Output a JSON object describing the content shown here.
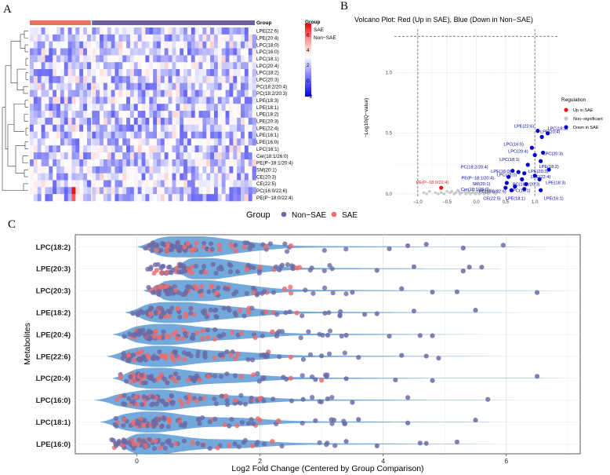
{
  "chart_data": [
    {
      "panel": "A",
      "type": "heatmap",
      "annotation_title": "Group",
      "groups": [
        "SAE",
        "Non−SAE"
      ],
      "group_colors": [
        "#ef6f5f",
        "#6f5ea0"
      ],
      "sae_samples": 16,
      "nonsae_samples": 43,
      "rows": [
        "LPE(22:6)",
        "LPE(20:4)",
        "LPC(18:0)",
        "LPC(16:0)",
        "LPC(18:1)",
        "LPC(20:4)",
        "LPC(18:2)",
        "LPC(20:3)",
        "PC(18:2/20:4)",
        "PC(18:2/20:3)",
        "LPE(18:3)",
        "LPE(18:1)",
        "LPE(18:2)",
        "LPE(20:3)",
        "LPE(22:4)",
        "LPE(16:1)",
        "LPE(16:0)",
        "LPC(16:1)",
        "Cer(18:1/26:0)",
        "PE(P−18:1/20:4)",
        "SM(20:1)",
        "CE(20:3)",
        "CE(22:5)",
        "PC(16:0/22:6)",
        "PE(P−18:0/22:4)"
      ],
      "legend_title": "Group",
      "scale_ticks": [
        "6",
        "4",
        "2",
        "0",
        "−2"
      ],
      "scale_range": [
        -2,
        7
      ],
      "colors": {
        "low": "#0000ee",
        "mid": "#ffffff",
        "high": "#ee0000"
      }
    },
    {
      "panel": "B",
      "type": "scatter",
      "title": "Volcano Plot: Red (Up in SAE), Blue (Down in Non−SAE)",
      "xlabel": "",
      "ylabel": "−Log10(Q−value)",
      "xlim": [
        -1.4,
        1.4
      ],
      "ylim": [
        -0.02,
        1.36
      ],
      "x_ticks": [
        "−1.0",
        "−0.5",
        "0.0",
        "0.5",
        "1.0"
      ],
      "y_ticks": [
        "0.0",
        "0.5",
        "1.0"
      ],
      "threshold_y": 1.3,
      "threshold_x": [
        -1,
        1
      ],
      "legend_title": "Regulation",
      "legend_items": [
        "Up in SAE",
        "Non−significant",
        "Down in SAE"
      ],
      "legend_colors": [
        "#e41a1c",
        "#c8c8c8",
        "#0000cc"
      ],
      "up_points": [
        {
          "label": "PE(P−18:0/22:4)",
          "x": -0.6,
          "y": 0.05
        }
      ],
      "down_points": [
        {
          "label": "LPE(22:6)",
          "x": 1.05,
          "y": 0.52
        },
        {
          "label": "LPC(18:2)",
          "x": 1.22,
          "y": 0.5
        },
        {
          "label": "LPE(20:4)",
          "x": 1.12,
          "y": 0.47
        },
        {
          "label": "LPC(16:0)",
          "x": 0.95,
          "y": 0.38
        },
        {
          "label": "LPC(20:4)",
          "x": 1.0,
          "y": 0.32
        },
        {
          "label": "LPC(20:3)",
          "x": 1.14,
          "y": 0.34
        },
        {
          "label": "LPE(18:2)",
          "x": 1.1,
          "y": 0.27
        },
        {
          "label": "LPE(20:3)",
          "x": 1.24,
          "y": 0.2
        },
        {
          "label": "LPC(18:1)",
          "x": 0.88,
          "y": 0.24
        },
        {
          "label": "PC(18:2/20:4)",
          "x": 0.62,
          "y": 0.19
        },
        {
          "label": "LPE(16:0)",
          "x": 0.72,
          "y": 0.18
        },
        {
          "label": "LPC(18:0)",
          "x": 0.82,
          "y": 0.17
        },
        {
          "label": "PE(P−18:1/20:4)",
          "x": 0.55,
          "y": 0.14
        },
        {
          "label": "PC(18:2/20:3)",
          "x": 0.78,
          "y": 0.12
        },
        {
          "label": "LPE(22:4)",
          "x": 1.0,
          "y": 0.15
        },
        {
          "label": "SM(20:1)",
          "x": 0.52,
          "y": 0.09
        },
        {
          "label": "LPE(18:3)",
          "x": 1.08,
          "y": 0.12
        },
        {
          "label": "LPC(16:1)",
          "x": 0.85,
          "y": 0.08
        },
        {
          "label": "PC(16:0/22:6)",
          "x": 0.66,
          "y": 0.06
        },
        {
          "label": "Cer(18:1/26:0)",
          "x": 0.5,
          "y": 0.05
        },
        {
          "label": "LPE(18:1)",
          "x": 0.82,
          "y": 0.04
        },
        {
          "label": "CE(22:5)",
          "x": 0.6,
          "y": 0.03
        },
        {
          "label": "LPE(16:1)",
          "x": 1.1,
          "y": 0.03
        }
      ],
      "ns_points": [
        [
          -0.9,
          0.01
        ],
        [
          -0.85,
          0.0
        ],
        [
          -0.8,
          0.02
        ],
        [
          -0.7,
          0.01
        ],
        [
          -0.55,
          0.0
        ],
        [
          -0.5,
          0.02
        ],
        [
          -0.45,
          0.01
        ],
        [
          -0.42,
          0.02
        ],
        [
          -0.38,
          0.0
        ],
        [
          -0.35,
          0.01
        ],
        [
          -0.3,
          0.02
        ],
        [
          -0.28,
          0.0
        ],
        [
          -0.25,
          0.01
        ],
        [
          -0.2,
          0.02
        ],
        [
          -0.18,
          0.0
        ],
        [
          -0.15,
          0.01
        ],
        [
          -0.12,
          0.02
        ],
        [
          -0.1,
          0.0
        ],
        [
          -0.07,
          0.01
        ],
        [
          -0.05,
          0.02
        ],
        [
          -0.02,
          0.0
        ],
        [
          0.0,
          0.01
        ],
        [
          0.03,
          0.02
        ],
        [
          0.05,
          0.0
        ],
        [
          0.08,
          0.01
        ],
        [
          0.1,
          0.02
        ],
        [
          0.13,
          0.0
        ],
        [
          0.15,
          0.01
        ],
        [
          0.18,
          0.02
        ],
        [
          0.2,
          0.0
        ],
        [
          0.22,
          0.01
        ],
        [
          0.25,
          0.03
        ],
        [
          0.28,
          0.02
        ],
        [
          0.3,
          0.01
        ],
        [
          0.33,
          0.0
        ],
        [
          0.36,
          0.02
        ],
        [
          -0.65,
          0.0
        ],
        [
          -0.6,
          0.01
        ],
        [
          -0.32,
          0.03
        ],
        [
          0.12,
          0.03
        ]
      ]
    },
    {
      "panel": "C",
      "type": "scatter",
      "subtype": "violin",
      "legend_title": "Group",
      "legend_items": [
        "Non−SAE",
        "SAE"
      ],
      "legend_colors": [
        "#6a6aa6",
        "#f06a6a"
      ],
      "violin_color": "#5b9bd5",
      "xlabel": "Log2 Fold Change (Centered by Group Comparison)",
      "ylabel": "Metabolites",
      "xlim": [
        -1,
        7.2
      ],
      "x_ticks": [
        0,
        2,
        4,
        6
      ],
      "categories": [
        "LPC(18:2)",
        "LPE(20:3)",
        "LPC(20:3)",
        "LPE(18:2)",
        "LPE(20:4)",
        "LPE(22:6)",
        "LPC(20:4)",
        "LPC(16:0)",
        "LPC(18:1)",
        "LPE(16:0)"
      ],
      "violin_ranges": [
        [
          0,
          6.7
        ],
        [
          0.55,
          6.2
        ],
        [
          0.1,
          7.0
        ],
        [
          -0.2,
          6.2
        ],
        [
          -0.4,
          5.6
        ],
        [
          -0.5,
          6.0
        ],
        [
          -0.4,
          7.2
        ],
        [
          -0.7,
          6.2
        ],
        [
          -0.6,
          6.0
        ],
        [
          -0.4,
          5.8
        ]
      ],
      "violin_peaks": [
        0.7,
        0.8,
        0.75,
        0.55,
        0.4,
        0.35,
        0.3,
        0.3,
        0.2,
        0.2
      ],
      "outliers": [
        {
          "non_sae": [
            5.95,
            5.3,
            4.7,
            4.4,
            4.1
          ],
          "sae": [
            2.1,
            2.5
          ]
        },
        {
          "non_sae": [
            5.6,
            5.4,
            5.3,
            4.5,
            3.9
          ],
          "sae": [
            2.6,
            2.0
          ]
        },
        {
          "non_sae": [
            6.5,
            5.2,
            4.8,
            4.3,
            3.5
          ],
          "sae": [
            2.4,
            1.9
          ]
        },
        {
          "non_sae": [
            5.5,
            4.5,
            3.9,
            3.7,
            3.3
          ],
          "sae": [
            2.1,
            2.6
          ]
        },
        {
          "non_sae": [
            4.8,
            4.6,
            4.1,
            3.4,
            3.1
          ],
          "sae": [
            2.2,
            1.7
          ]
        },
        {
          "non_sae": [
            4.9,
            4.7,
            4.3,
            3.6,
            3.0
          ],
          "sae": [
            2.5,
            1.6
          ]
        },
        {
          "non_sae": [
            6.5,
            4.8,
            4.2,
            3.4,
            2.9
          ],
          "sae": [
            2.5,
            3.0
          ]
        },
        {
          "non_sae": [
            5.7,
            4.4,
            3.5,
            3.1,
            2.7
          ],
          "sae": [
            2.0,
            1.6
          ]
        },
        {
          "non_sae": [
            5.5,
            4.4,
            3.6,
            3.2,
            2.9
          ],
          "sae": [
            2.3,
            2.0
          ]
        },
        {
          "non_sae": [
            5.2,
            4.7,
            4.6,
            3.9,
            3.4
          ],
          "sae": [
            2.2,
            1.5
          ]
        }
      ]
    }
  ],
  "panel_labels": [
    "A",
    "B",
    "C"
  ]
}
